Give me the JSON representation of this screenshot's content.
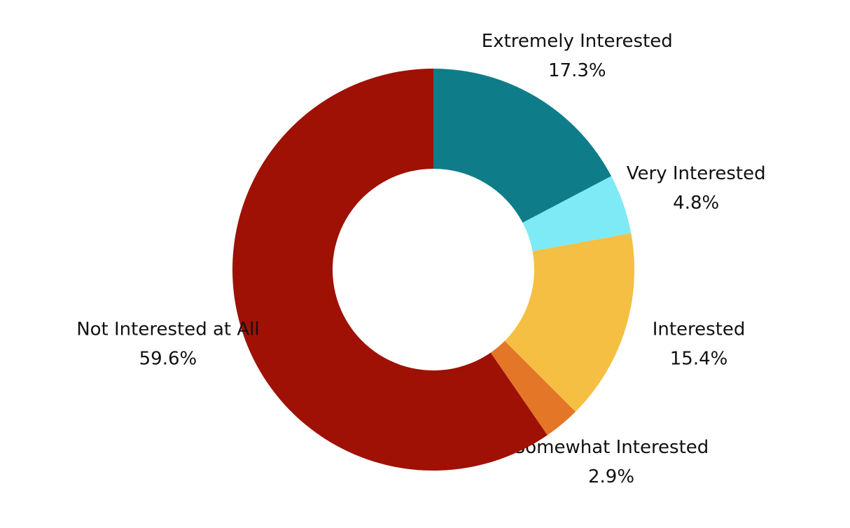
{
  "chart_data": {
    "type": "donut",
    "categories": [
      "Extremely Interested",
      "Very Interested",
      "Interested",
      "Somewhat Interested",
      "Not Interested at All"
    ],
    "values": [
      17.3,
      4.8,
      15.4,
      2.9,
      59.6
    ],
    "value_labels": [
      "17.3%",
      "4.8%",
      "15.4%",
      "2.9%",
      "59.6%"
    ],
    "colors": [
      "#0e7d89",
      "#7deaf5",
      "#f4bf42",
      "#e37627",
      "#9e1104"
    ]
  }
}
